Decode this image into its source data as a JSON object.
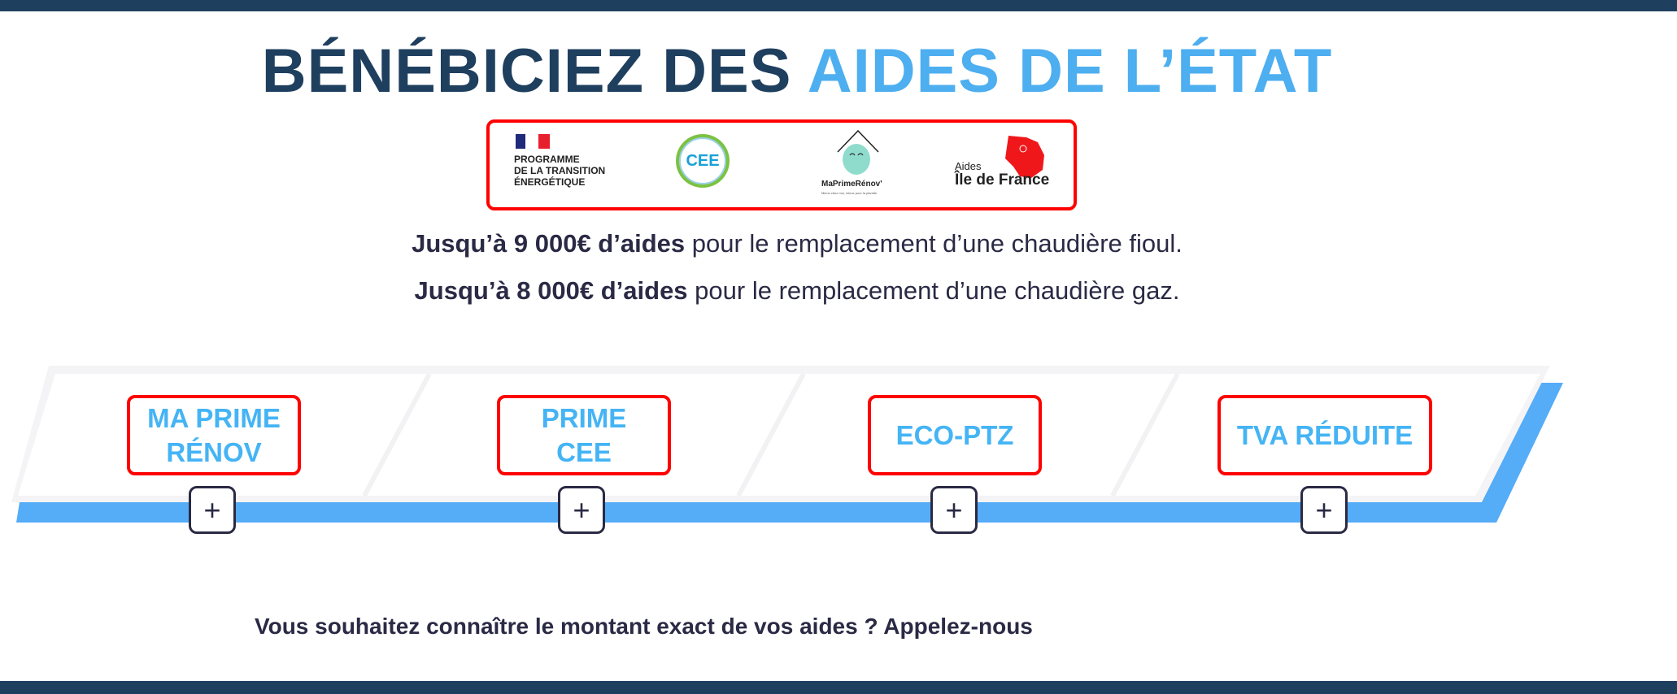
{
  "colors": {
    "dark": "#1f3f5f",
    "accent": "#4daef0",
    "highlight_border": "#ff0000",
    "band_blue": "#55acf7"
  },
  "header": {
    "title_dark": "BÉNÉBICIEZ DES ",
    "title_accent": "AIDES DE L’ÉTAT"
  },
  "logos": {
    "programme": {
      "lines": [
        "PROGRAMME",
        "DE LA TRANSITION",
        "ÉNERGÉTIQUE"
      ]
    },
    "cee": {
      "text": "CEE"
    },
    "maprimerenov": {
      "name": "MaPrimeRénov'",
      "tagline": "Mieux chez moi, mieux pour la planète"
    },
    "idf": {
      "small": "Aides",
      "big": "Île de France"
    }
  },
  "intro": [
    {
      "bold": "Jusqu’à 9 000€ d’aides",
      "rest": " pour le remplacement d’une chaudière fioul."
    },
    {
      "bold": "Jusqu’à 8 000€ d’aides",
      "rest": " pour le remplacement d’une chaudière gaz."
    }
  ],
  "aids": [
    {
      "label": "MA PRIME RÉNOV",
      "expand_icon": "plus-icon"
    },
    {
      "label": "PRIME CEE",
      "expand_icon": "plus-icon"
    },
    {
      "label": "ECO-PTZ",
      "expand_icon": "plus-icon"
    },
    {
      "label": "TVA RÉDUITE",
      "expand_icon": "plus-icon"
    }
  ],
  "plus_symbol": "+",
  "cta": "Vous souhaitez connaître le montant exact de vos aides ? Appelez-nous"
}
